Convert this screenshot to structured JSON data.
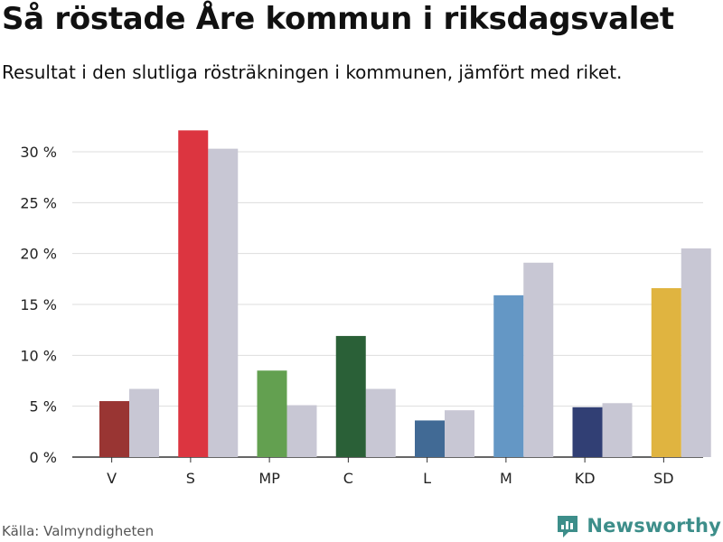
{
  "title": "Så röstade Åre kommun i riksdagsvalet",
  "subtitle": "Resultat i den slutliga rösträkningen i kommunen, jämfört med riket.",
  "source": "Källa: Valmyndigheten",
  "brand": {
    "name": "Newsworthy",
    "icon": "newsworthy-logo-icon"
  },
  "colors": {
    "comparison": "#c8c7d4",
    "grid": "#dddddd",
    "axis": "#333333",
    "brand": "#3d8e8a",
    "parties": [
      "#993533",
      "#dc3540",
      "#63a050",
      "#2a6037",
      "#416a95",
      "#6497c5",
      "#313f74",
      "#e0b440"
    ]
  },
  "chart_data": {
    "type": "bar",
    "title": "Så röstade Åre kommun i riksdagsvalet",
    "xlabel": "",
    "ylabel": "",
    "categories": [
      "V",
      "S",
      "MP",
      "C",
      "L",
      "M",
      "KD",
      "SD"
    ],
    "series": [
      {
        "name": "Åre kommun",
        "values": [
          5.5,
          32.1,
          8.5,
          11.9,
          3.6,
          15.9,
          4.9,
          16.6
        ]
      },
      {
        "name": "Riket",
        "values": [
          6.7,
          30.3,
          5.1,
          6.7,
          4.6,
          19.1,
          5.3,
          20.5
        ]
      }
    ],
    "ylim": [
      0,
      32
    ],
    "yticks": [
      0,
      5,
      10,
      15,
      20,
      25,
      30
    ],
    "ytick_labels": [
      "0 %",
      "5 %",
      "10 %",
      "15 %",
      "20 %",
      "25 %",
      "30 %"
    ],
    "grid": true,
    "legend": "none"
  }
}
